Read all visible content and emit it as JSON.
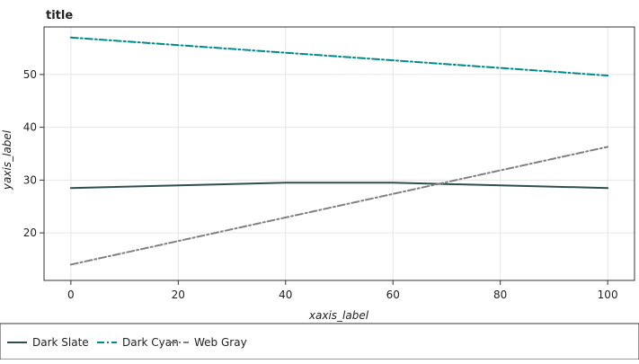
{
  "chart_data": {
    "type": "line",
    "title": "title",
    "xlabel": "xaxis_label",
    "ylabel": "yaxis_label",
    "xlim": [
      -5,
      105
    ],
    "ylim": [
      11,
      59
    ],
    "x_ticks": [
      0,
      20,
      40,
      60,
      80,
      100
    ],
    "y_ticks": [
      20,
      30,
      40,
      50
    ],
    "grid": true,
    "legend_position": "bottom",
    "series": [
      {
        "name": "Dark Slate",
        "color": "#2f4f4f",
        "dash": "solid",
        "x": [
          0,
          40,
          60,
          100
        ],
        "y": [
          28.5,
          29.5,
          29.5,
          28.5
        ]
      },
      {
        "name": "Dark Cyan",
        "color": "#008b8b",
        "dash": "dashdot",
        "x": [
          0,
          100
        ],
        "y": [
          57,
          49.8
        ]
      },
      {
        "name": "Web Gray",
        "color": "#808080",
        "dash": "dashdot",
        "x": [
          0,
          100
        ],
        "y": [
          14,
          36.3
        ]
      }
    ]
  }
}
